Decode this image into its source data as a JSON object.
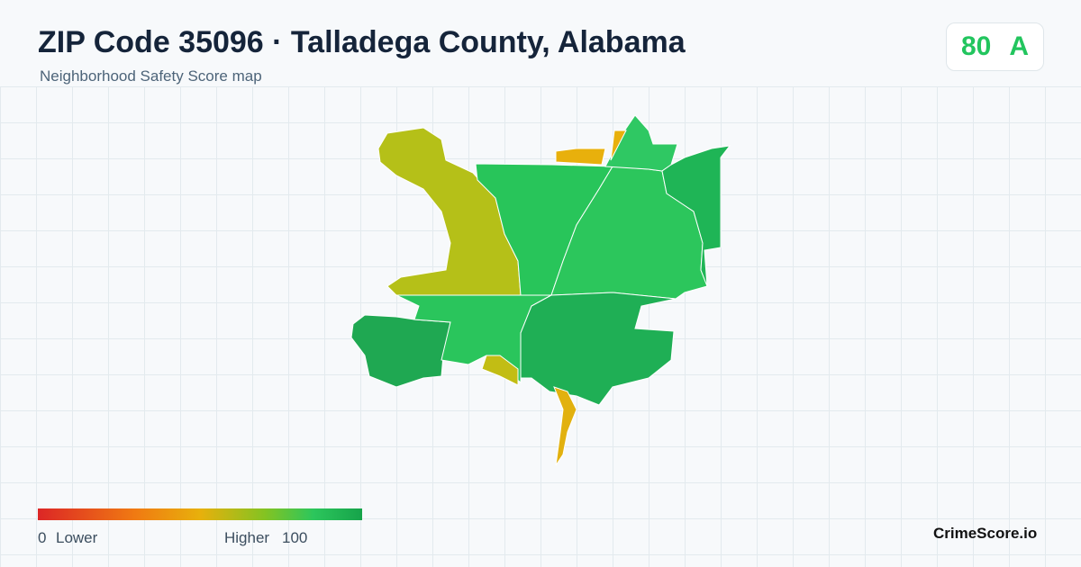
{
  "header": {
    "title": "ZIP Code 35096 · Talladega County, Alabama",
    "subtitle": "Neighborhood Safety Score map"
  },
  "score": {
    "value": 80,
    "grade": "A"
  },
  "legend": {
    "min": 0,
    "min_label": "Lower",
    "max_label": "Higher",
    "max": 100
  },
  "footer": {
    "brand": "CrimeScore.io"
  }
}
